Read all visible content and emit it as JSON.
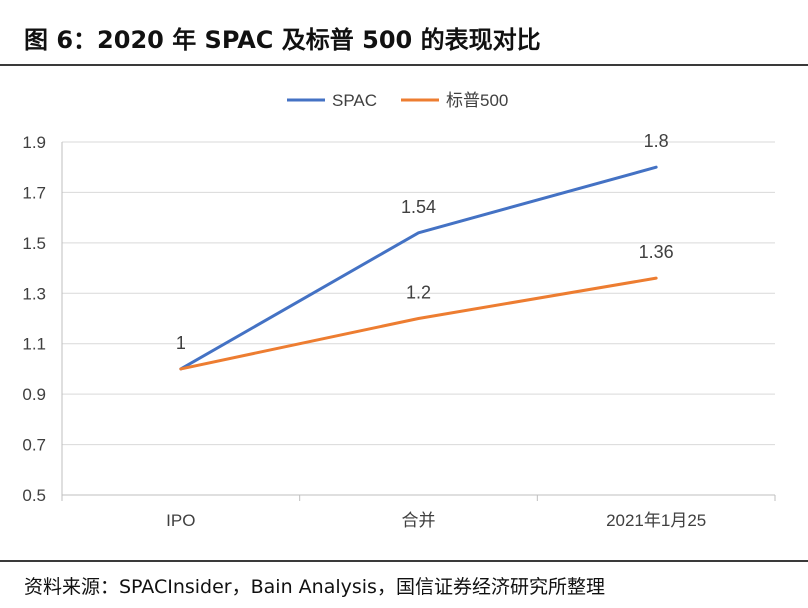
{
  "header": {
    "title": "图 6：2020 年 SPAC 及标普 500 的表现对比"
  },
  "footer": {
    "source": "资料来源：SPACInsider，Bain Analysis，国信证券经济研究所整理"
  },
  "chart_data": {
    "type": "line",
    "title": "2020 年 SPAC 及标普 500 的表现对比",
    "categories": [
      "IPO",
      "合并",
      "2021年1月25"
    ],
    "series": [
      {
        "name": "SPAC",
        "values": [
          1,
          1.54,
          1.8
        ],
        "color": "#4472C4"
      },
      {
        "name": "标普500",
        "values": [
          1,
          1.2,
          1.36
        ],
        "color": "#ED7D31"
      }
    ],
    "data_labels": [
      "1",
      "1.54",
      "1.8",
      "1.2",
      "1.36"
    ],
    "ylim": [
      0.5,
      1.9
    ],
    "yticks": [
      "0.5",
      "0.7",
      "0.9",
      "1.1",
      "1.3",
      "1.5",
      "1.7",
      "1.9"
    ],
    "grid": true,
    "legend": "top-center",
    "xlabel": "",
    "ylabel": ""
  }
}
